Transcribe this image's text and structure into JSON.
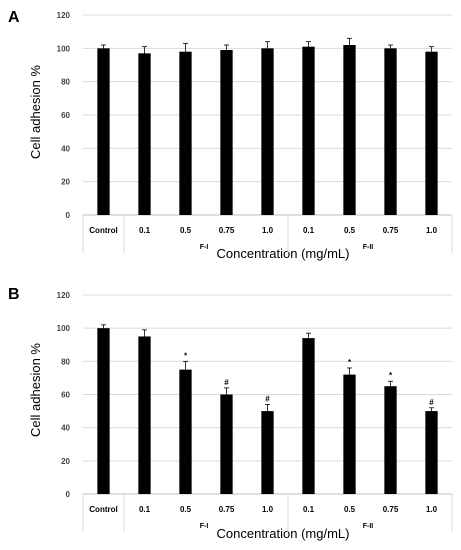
{
  "chart_data": [
    {
      "type": "bar",
      "panel": "A",
      "categories": [
        "Control",
        "0.1",
        "0.5",
        "0.75",
        "1.0",
        "0.1",
        "0.5",
        "0.75",
        "1.0"
      ],
      "groups": [
        {
          "label": "F-I",
          "start": 1,
          "end": 4
        },
        {
          "label": "F-II",
          "start": 5,
          "end": 8
        }
      ],
      "values": [
        100,
        97,
        98,
        99,
        100,
        101,
        102,
        100,
        98
      ],
      "errors": [
        2,
        4,
        5,
        3,
        4,
        3,
        4,
        2,
        3
      ],
      "annotations": [
        "",
        "",
        "",
        "",
        "",
        "",
        "",
        "",
        ""
      ],
      "ylabel": "Cell adhesion %",
      "xlabel": "Concentration (mg/mL)",
      "ylim": [
        0,
        120
      ],
      "yticks": [
        0,
        20,
        40,
        60,
        80,
        100,
        120
      ],
      "grid": "horizontal",
      "bar_color": "#000000"
    },
    {
      "type": "bar",
      "panel": "B",
      "categories": [
        "Control",
        "0.1",
        "0.5",
        "0.75",
        "1.0",
        "0.1",
        "0.5",
        "0.75",
        "1.0"
      ],
      "groups": [
        {
          "label": "F-I",
          "start": 1,
          "end": 4
        },
        {
          "label": "F-II",
          "start": 5,
          "end": 8
        }
      ],
      "values": [
        100,
        95,
        75,
        60,
        50,
        94,
        72,
        65,
        50
      ],
      "errors": [
        2,
        4,
        5,
        4,
        4,
        3,
        4,
        3,
        2
      ],
      "annotations": [
        "",
        "",
        "*",
        "#",
        "#",
        "",
        "*",
        "*",
        "#"
      ],
      "ylabel": "Cell adhesion %",
      "xlabel": "Concentration (mg/mL)",
      "ylim": [
        0,
        120
      ],
      "yticks": [
        0,
        20,
        40,
        60,
        80,
        100,
        120
      ],
      "grid": "horizontal",
      "bar_color": "#000000"
    }
  ]
}
